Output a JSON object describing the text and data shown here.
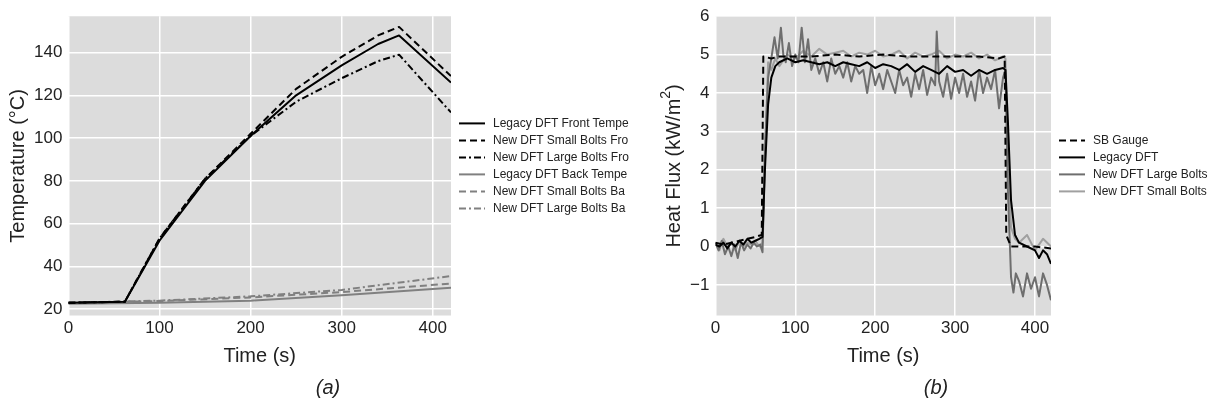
{
  "chart_data": [
    {
      "type": "line",
      "xlabel": "Time (s)",
      "ylabel": "Temperature (°C)",
      "annotations": [
        "(a)"
      ],
      "xlim": [
        0,
        420
      ],
      "xticks": [
        0,
        100,
        200,
        300,
        400
      ],
      "ylim": [
        17,
        157
      ],
      "yticks": [
        20,
        40,
        60,
        80,
        100,
        120,
        140
      ],
      "grid": true,
      "legend": "right",
      "series": [
        {
          "name": "Legacy DFT Front Tempe",
          "color": "#000000",
          "line_style": "solid",
          "x": [
            0,
            62,
            100,
            150,
            200,
            250,
            300,
            340,
            363,
            420
          ],
          "values": [
            23,
            23.5,
            52,
            80,
            101,
            120,
            134,
            144,
            148,
            126
          ]
        },
        {
          "name": "New DFT Small Bolts Fro",
          "color": "#000000",
          "line_style": "dashed",
          "x": [
            0,
            62,
            100,
            150,
            200,
            250,
            300,
            340,
            363,
            420
          ],
          "values": [
            23,
            23.5,
            53,
            81,
            102,
            123,
            138,
            148,
            152,
            129
          ]
        },
        {
          "name": "New DFT Large Bolts Fro",
          "color": "#000000",
          "line_style": "dashdot",
          "x": [
            0,
            62,
            100,
            150,
            200,
            250,
            300,
            340,
            363,
            420
          ],
          "values": [
            23,
            23.5,
            53,
            81,
            101,
            117,
            128,
            136,
            139,
            112
          ]
        },
        {
          "name": "Legacy DFT Back Tempe",
          "color": "#808080",
          "line_style": "solid",
          "x": [
            0,
            100,
            200,
            300,
            420
          ],
          "values": [
            22.5,
            23,
            24,
            26.5,
            30
          ]
        },
        {
          "name": "New DFT Small Bolts Ba",
          "color": "#808080",
          "line_style": "dashed",
          "x": [
            0,
            100,
            200,
            300,
            420
          ],
          "values": [
            23,
            23.8,
            25.5,
            28,
            32
          ]
        },
        {
          "name": "New DFT Large Bolts Ba",
          "color": "#808080",
          "line_style": "dashdot",
          "x": [
            0,
            100,
            200,
            300,
            420
          ],
          "values": [
            23,
            24,
            26,
            29,
            35.5
          ]
        }
      ]
    },
    {
      "type": "line",
      "xlabel": "Time (s)",
      "ylabel": "Heat Flux (kW/m$^{2}$)",
      "annotations": [
        "(b)"
      ],
      "xlim": [
        0,
        420
      ],
      "xticks": [
        0,
        100,
        200,
        300,
        400
      ],
      "ylim": [
        -1.8,
        6
      ],
      "yticks": [
        {
          "value": -1,
          "label": "−1"
        },
        0,
        1,
        2,
        3,
        4,
        5,
        6
      ],
      "grid": true,
      "legend": "right",
      "series": [
        {
          "name": "SB Gauge",
          "color": "#000000",
          "line_style": "dashed",
          "x": [
            0,
            10,
            20,
            30,
            40,
            50,
            58,
            60,
            70,
            80,
            100,
            120,
            150,
            180,
            210,
            240,
            270,
            300,
            330,
            355,
            362,
            364,
            370,
            380,
            400,
            420
          ],
          "values": [
            0.1,
            0.05,
            0.1,
            0.15,
            0.2,
            0.25,
            0.3,
            4.95,
            4.9,
            4.95,
            4.95,
            4.95,
            5.0,
            4.95,
            5.0,
            4.95,
            4.95,
            4.95,
            4.95,
            4.9,
            4.95,
            0.3,
            0,
            0,
            0,
            -0.05
          ]
        },
        {
          "name": "Legacy DFT",
          "color": "#000000",
          "line_style": "solid",
          "x": [
            0,
            5,
            10,
            15,
            20,
            25,
            30,
            35,
            40,
            45,
            50,
            55,
            59,
            62,
            66,
            70,
            75,
            80,
            90,
            100,
            110,
            120,
            130,
            140,
            150,
            160,
            170,
            180,
            190,
            200,
            210,
            220,
            230,
            240,
            250,
            260,
            270,
            280,
            290,
            300,
            310,
            320,
            330,
            340,
            350,
            360,
            363,
            366,
            370,
            375,
            380,
            390,
            400,
            405,
            410,
            415,
            420
          ],
          "values": [
            0.05,
            0,
            0.1,
            -0.05,
            0.1,
            0,
            0.15,
            0.05,
            0.2,
            0.1,
            0.15,
            0.2,
            0.25,
            2,
            3.7,
            4.4,
            4.7,
            4.8,
            4.9,
            4.8,
            4.85,
            4.8,
            4.75,
            4.8,
            4.7,
            4.8,
            4.75,
            4.7,
            4.8,
            4.65,
            4.75,
            4.7,
            4.6,
            4.75,
            4.55,
            4.7,
            4.6,
            4.5,
            4.7,
            4.55,
            4.6,
            4.45,
            4.6,
            4.5,
            4.6,
            4.65,
            4.6,
            3.3,
            1.2,
            0.3,
            0.1,
            0,
            -0.1,
            -0.3,
            -0.1,
            -0.2,
            -0.45
          ]
        },
        {
          "name": "New DFT Large Bolts",
          "color": "#6e6e6e",
          "line_style": "solid",
          "x": [
            0,
            4,
            8,
            12,
            16,
            20,
            24,
            28,
            32,
            36,
            40,
            44,
            48,
            52,
            56,
            59,
            62,
            66,
            70,
            74,
            78,
            82,
            85,
            88,
            92,
            96,
            100,
            104,
            108,
            112,
            116,
            120,
            125,
            130,
            135,
            140,
            145,
            150,
            155,
            160,
            165,
            170,
            175,
            180,
            185,
            190,
            195,
            200,
            205,
            210,
            215,
            220,
            225,
            230,
            235,
            240,
            245,
            250,
            255,
            260,
            265,
            270,
            275,
            277,
            280,
            285,
            290,
            295,
            300,
            305,
            310,
            315,
            320,
            325,
            330,
            335,
            340,
            345,
            350,
            355,
            360,
            363,
            366,
            370,
            373,
            376,
            380,
            385,
            390,
            395,
            400,
            405,
            410,
            415,
            420
          ],
          "values": [
            0.1,
            -0.1,
            0.15,
            -0.2,
            0,
            -0.25,
            0.05,
            -0.3,
            0.1,
            -0.1,
            0.05,
            -0.05,
            0.1,
            0,
            0.05,
            -0.15,
            2.5,
            4.4,
            4.9,
            5.45,
            4.9,
            5.7,
            5.0,
            4.8,
            5.3,
            4.7,
            5.0,
            4.8,
            5.7,
            4.8,
            5.4,
            4.6,
            4.9,
            4.5,
            4.8,
            4.3,
            4.9,
            4.5,
            4.7,
            4.4,
            4.8,
            4.3,
            4.7,
            4.5,
            4.6,
            4.0,
            4.7,
            4.2,
            4.5,
            4.1,
            4.6,
            4.3,
            4.0,
            4.6,
            4.2,
            4.4,
            3.9,
            4.5,
            4.1,
            4.6,
            3.95,
            4.4,
            4.2,
            5.6,
            4.3,
            3.9,
            4.5,
            3.85,
            4.4,
            4.0,
            4.5,
            3.9,
            4.3,
            3.8,
            4.6,
            4.0,
            4.4,
            4.1,
            4.6,
            3.6,
            4.4,
            4.6,
            1.5,
            -0.8,
            -1.2,
            -0.7,
            -0.9,
            -1.3,
            -0.7,
            -1.1,
            -0.8,
            -1.3,
            -0.7,
            -1.0,
            -1.4
          ]
        },
        {
          "name": "New DFT Small Bolts",
          "color": "#a0a0a0",
          "line_style": "solid",
          "x": [
            0,
            5,
            10,
            15,
            20,
            25,
            30,
            35,
            40,
            45,
            50,
            55,
            59,
            62,
            66,
            70,
            75,
            80,
            90,
            100,
            110,
            120,
            130,
            140,
            150,
            160,
            170,
            180,
            190,
            200,
            210,
            220,
            230,
            240,
            250,
            260,
            270,
            280,
            290,
            300,
            310,
            320,
            330,
            340,
            350,
            360,
            363,
            366,
            370,
            375,
            380,
            390,
            400,
            410,
            420
          ],
          "values": [
            0.1,
            -0.1,
            0.2,
            0,
            0.1,
            -0.1,
            0.15,
            0,
            0.1,
            0.05,
            0.15,
            0,
            0.1,
            2.2,
            4.8,
            4.6,
            4.9,
            4.7,
            5.0,
            4.9,
            5.1,
            4.95,
            5.15,
            5.0,
            5.05,
            5.1,
            4.95,
            5.05,
            5.0,
            5.1,
            4.95,
            5.0,
            5.1,
            4.9,
            5.05,
            4.95,
            5.0,
            5.1,
            4.9,
            5.0,
            4.95,
            5.05,
            4.9,
            5.0,
            4.85,
            4.95,
            4.9,
            2.5,
            0.5,
            0.2,
            0.1,
            0.3,
            -0.1,
            0.2,
            0
          ]
        }
      ]
    }
  ]
}
